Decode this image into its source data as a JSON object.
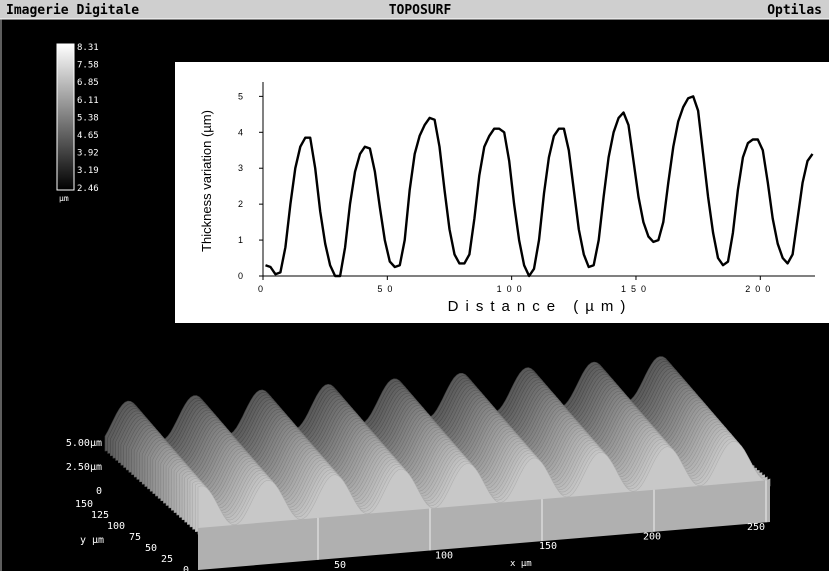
{
  "header": {
    "left": "Imagerie Digitale",
    "center": "TOPOSURF",
    "right": "Optilas"
  },
  "colorbar": {
    "labels": [
      "8.31",
      "7.58",
      "6.85",
      "6.11",
      "5.38",
      "4.65",
      "3.92",
      "3.19",
      "2.46"
    ],
    "unit": "µm"
  },
  "chart_data": {
    "type": "line",
    "xlabel": "Distance (µm)",
    "ylabel": "Thickness variation (µm)",
    "xlim": [
      0,
      222
    ],
    "ylim": [
      0,
      5.4
    ],
    "xticks": [
      0,
      50,
      100,
      150,
      200
    ],
    "yticks": [
      0,
      1,
      2,
      3,
      4,
      5
    ],
    "x": [
      1,
      3,
      5,
      7,
      9,
      11,
      13,
      15,
      17,
      19,
      21,
      23,
      25,
      27,
      29,
      31,
      33,
      35,
      37,
      39,
      41,
      43,
      45,
      47,
      49,
      51,
      53,
      55,
      57,
      59,
      61,
      63,
      65,
      67,
      69,
      71,
      73,
      75,
      77,
      79,
      81,
      83,
      85,
      87,
      89,
      91,
      93,
      95,
      97,
      99,
      101,
      103,
      105,
      107,
      109,
      111,
      113,
      115,
      117,
      119,
      121,
      123,
      125,
      127,
      129,
      131,
      133,
      135,
      137,
      139,
      141,
      143,
      145,
      147,
      149,
      151,
      153,
      155,
      157,
      159,
      161,
      163,
      165,
      167,
      169,
      171,
      173,
      175,
      177,
      179,
      181,
      183,
      185,
      187,
      189,
      191,
      193,
      195,
      197,
      199,
      201,
      203,
      205,
      207,
      209,
      211,
      213,
      215,
      217,
      219,
      221
    ],
    "series": [
      {
        "color": "#000000",
        "values": [
          0.3,
          0.25,
          0.05,
          0.1,
          0.8,
          2.0,
          3.0,
          3.6,
          3.85,
          3.85,
          3.0,
          1.8,
          0.9,
          0.3,
          0.0,
          0.0,
          0.8,
          2.0,
          2.9,
          3.4,
          3.6,
          3.55,
          2.9,
          1.9,
          1.0,
          0.4,
          0.25,
          0.3,
          1.0,
          2.4,
          3.4,
          3.9,
          4.2,
          4.4,
          4.35,
          3.6,
          2.4,
          1.3,
          0.6,
          0.35,
          0.35,
          0.6,
          1.6,
          2.8,
          3.6,
          3.9,
          4.1,
          4.1,
          4.0,
          3.2,
          2.0,
          1.0,
          0.3,
          0.0,
          0.2,
          1.0,
          2.3,
          3.3,
          3.9,
          4.1,
          4.1,
          3.5,
          2.4,
          1.3,
          0.6,
          0.25,
          0.3,
          1.0,
          2.2,
          3.3,
          4.0,
          4.4,
          4.55,
          4.2,
          3.2,
          2.2,
          1.5,
          1.1,
          0.95,
          1.0,
          1.5,
          2.6,
          3.6,
          4.3,
          4.7,
          4.95,
          5.0,
          4.6,
          3.4,
          2.2,
          1.2,
          0.5,
          0.3,
          0.4,
          1.2,
          2.4,
          3.3,
          3.7,
          3.8,
          3.8,
          3.5,
          2.6,
          1.6,
          0.9,
          0.5,
          0.35,
          0.6,
          1.6,
          2.6,
          3.2,
          3.4
        ]
      }
    ]
  },
  "surface_3d": {
    "z_labels": [
      "5.00µm",
      "2.50µm",
      "0"
    ],
    "y_labels": [
      "150",
      "125",
      "100",
      "75",
      "50",
      "25",
      "0"
    ],
    "y_title": "y µm",
    "x_labels": [
      "50",
      "100",
      "150",
      "200",
      "250"
    ],
    "x_title": "x µm"
  }
}
